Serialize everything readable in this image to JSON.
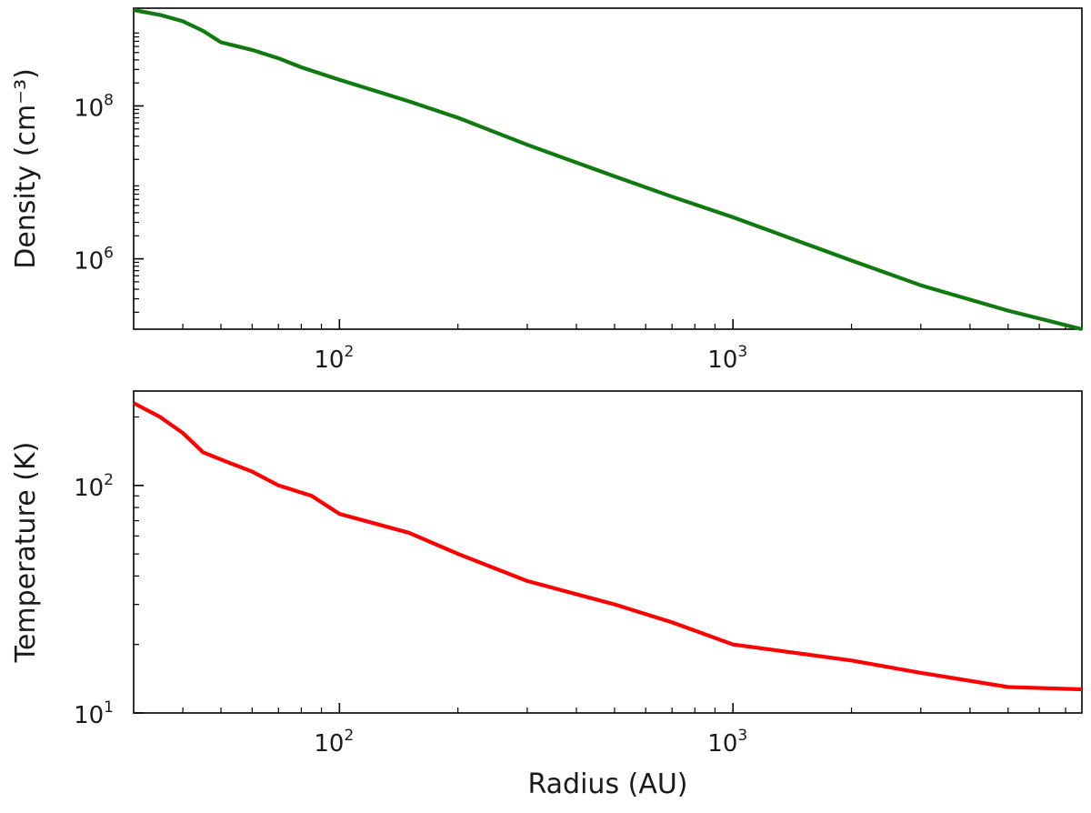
{
  "chart_data": [
    {
      "type": "line",
      "ylabel": "Density (cm⁻³)",
      "xlabel": "",
      "xscale": "log",
      "yscale": "log",
      "xlim": [
        30,
        7700
      ],
      "ylim": [
        120000,
        1900000000
      ],
      "x_ticks": [
        {
          "value": 100,
          "base": "10",
          "exp": "2"
        },
        {
          "value": 1000,
          "base": "10",
          "exp": "3"
        }
      ],
      "y_ticks": [
        {
          "value": 1000000,
          "base": "10",
          "exp": "6"
        },
        {
          "value": 100000000,
          "base": "10",
          "exp": "8"
        }
      ],
      "grid": false,
      "series": [
        {
          "color": "#107a10",
          "x": [
            30,
            35,
            40,
            45,
            50,
            60,
            70,
            80,
            100,
            150,
            200,
            300,
            500,
            700,
            1000,
            2000,
            3000,
            5000,
            7700
          ],
          "y": [
            1800000000,
            1550000000,
            1280000000,
            960000000,
            680000000,
            540000000,
            420000000,
            320000000,
            220000000,
            115000000,
            70000000,
            31000000,
            12000000,
            6500000,
            3500000,
            950000,
            450000,
            210000,
            120000
          ]
        }
      ]
    },
    {
      "type": "line",
      "ylabel": "Temperature (K)",
      "xlabel": "Radius (AU)",
      "xscale": "log",
      "yscale": "log",
      "xlim": [
        30,
        7700
      ],
      "ylim": [
        10,
        260
      ],
      "x_ticks": [
        {
          "value": 100,
          "base": "10",
          "exp": "2"
        },
        {
          "value": 1000,
          "base": "10",
          "exp": "3"
        }
      ],
      "y_ticks": [
        {
          "value": 10,
          "base": "10",
          "exp": "1"
        },
        {
          "value": 100,
          "base": "10",
          "exp": "2"
        }
      ],
      "grid": false,
      "series": [
        {
          "color": "#ff0000",
          "x": [
            30,
            35,
            40,
            45,
            50,
            60,
            70,
            85,
            100,
            150,
            200,
            300,
            500,
            700,
            1000,
            2000,
            3000,
            5000,
            7700
          ],
          "y": [
            230,
            200,
            170,
            140,
            130,
            115,
            100,
            90,
            75,
            62,
            50,
            38,
            30,
            25,
            20,
            17,
            15,
            13,
            12.7
          ]
        }
      ]
    }
  ]
}
